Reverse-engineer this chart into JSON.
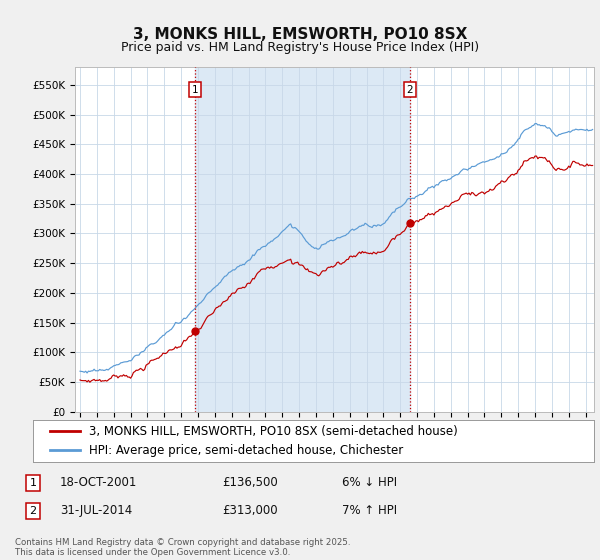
{
  "title": "3, MONKS HILL, EMSWORTH, PO10 8SX",
  "subtitle": "Price paid vs. HM Land Registry's House Price Index (HPI)",
  "ylim": [
    0,
    580000
  ],
  "yticks": [
    0,
    50000,
    100000,
    150000,
    200000,
    250000,
    300000,
    350000,
    400000,
    450000,
    500000,
    550000
  ],
  "ytick_labels": [
    "£0",
    "£50K",
    "£100K",
    "£150K",
    "£200K",
    "£250K",
    "£300K",
    "£350K",
    "£400K",
    "£450K",
    "£500K",
    "£550K"
  ],
  "xlim_start": 1994.7,
  "xlim_end": 2025.5,
  "xticks": [
    1995,
    1996,
    1997,
    1998,
    1999,
    2000,
    2001,
    2002,
    2003,
    2004,
    2005,
    2006,
    2007,
    2008,
    2009,
    2010,
    2011,
    2012,
    2013,
    2014,
    2015,
    2016,
    2017,
    2018,
    2019,
    2020,
    2021,
    2022,
    2023,
    2024,
    2025
  ],
  "hpi_color": "#5b9bd5",
  "price_color": "#c00000",
  "vline_color": "#c00000",
  "shade_color": "#dce9f5",
  "sale1_t": 2001.8,
  "sale1_p": 136500,
  "sale2_t": 2014.583,
  "sale2_p": 313000,
  "legend_label_price": "3, MONKS HILL, EMSWORTH, PO10 8SX (semi-detached house)",
  "legend_label_hpi": "HPI: Average price, semi-detached house, Chichester",
  "annotation1": [
    "1",
    "18-OCT-2001",
    "£136,500",
    "6% ↓ HPI"
  ],
  "annotation2": [
    "2",
    "31-JUL-2014",
    "£313,000",
    "7% ↑ HPI"
  ],
  "footnote": "Contains HM Land Registry data © Crown copyright and database right 2025.\nThis data is licensed under the Open Government Licence v3.0.",
  "bg_color": "#f0f0f0",
  "plot_bg_color": "#ffffff",
  "title_fontsize": 11,
  "subtitle_fontsize": 9,
  "axis_fontsize": 7.5,
  "legend_fontsize": 8.5
}
